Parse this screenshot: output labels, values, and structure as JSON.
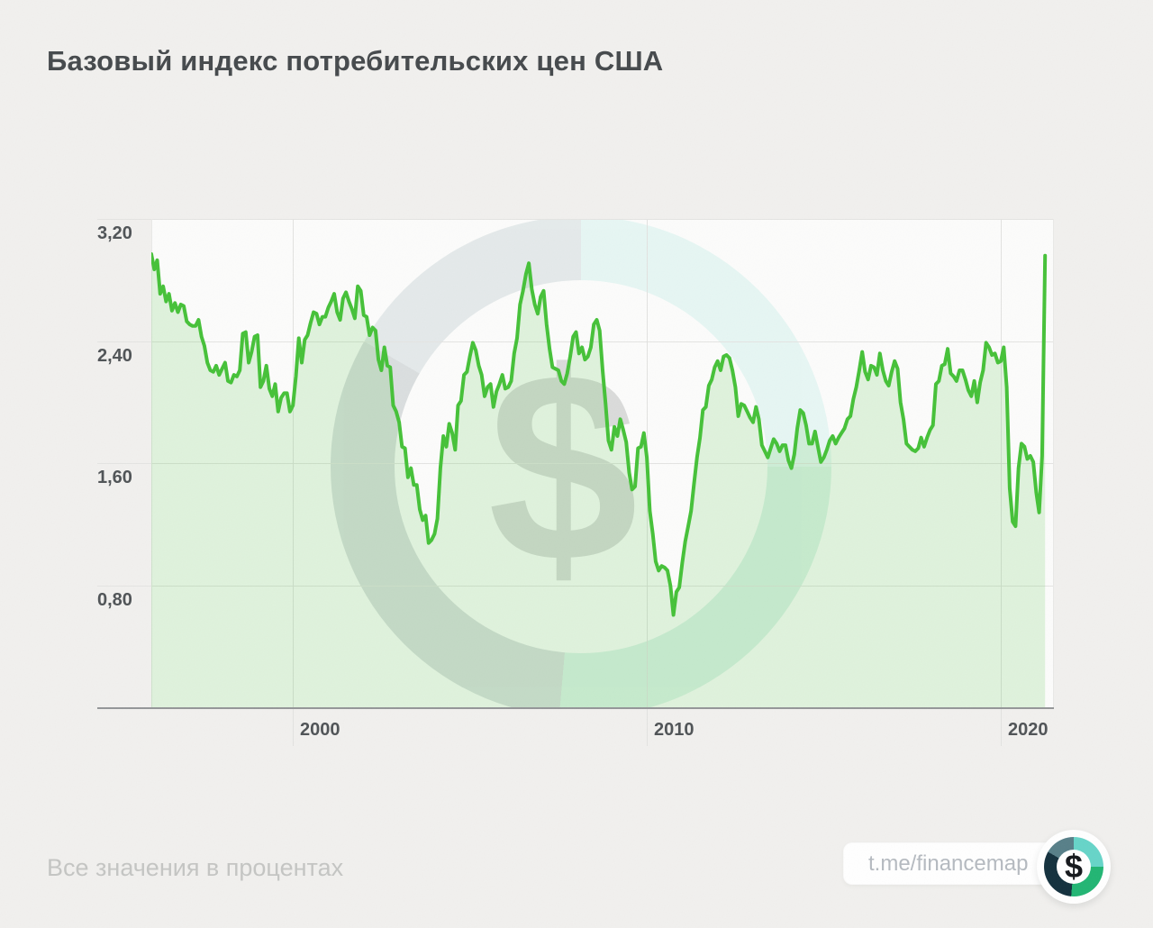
{
  "page": {
    "title": "Базовый индекс потребительских цен США",
    "footnote": "Все значения в процентах",
    "badge_text": "t.me/financemap"
  },
  "brand": {
    "symbol": "$",
    "ring_colors": [
      "#66d4c8",
      "#21b573",
      "#13303d",
      "#577f88"
    ],
    "accent_green": "#45c138"
  },
  "chart_data": {
    "type": "line",
    "title": "Базовый индекс потребительских цен США",
    "units": "percent",
    "frequency": "monthly",
    "start_year": 1996,
    "end_month": "2021-04",
    "x_domain": [
      1996,
      2021.5
    ],
    "y_domain": [
      0,
      3.2
    ],
    "ylim": [
      0,
      3.2
    ],
    "grid": true,
    "legend_position": "none",
    "line_color": "#45c138",
    "fill_color": "rgba(76,191,60,0.16)",
    "y_ticks": [
      {
        "value": 3.2,
        "label": "3,20"
      },
      {
        "value": 2.4,
        "label": "2,40"
      },
      {
        "value": 1.6,
        "label": "1,60"
      },
      {
        "value": 0.8,
        "label": "0,80"
      }
    ],
    "x_ticks": [
      {
        "value": 2000,
        "label": "2000"
      },
      {
        "value": 2010,
        "label": "2010"
      },
      {
        "value": 2020,
        "label": "2020"
      }
    ],
    "values": [
      2.97,
      2.87,
      2.93,
      2.71,
      2.76,
      2.66,
      2.71,
      2.6,
      2.65,
      2.59,
      2.64,
      2.63,
      2.53,
      2.51,
      2.5,
      2.5,
      2.54,
      2.43,
      2.37,
      2.26,
      2.21,
      2.2,
      2.24,
      2.18,
      2.22,
      2.26,
      2.14,
      2.13,
      2.18,
      2.17,
      2.21,
      2.45,
      2.46,
      2.26,
      2.33,
      2.43,
      2.44,
      2.1,
      2.14,
      2.24,
      2.09,
      2.04,
      2.12,
      1.94,
      2.03,
      2.06,
      2.06,
      1.94,
      1.98,
      2.17,
      2.42,
      2.26,
      2.41,
      2.44,
      2.52,
      2.59,
      2.58,
      2.51,
      2.56,
      2.56,
      2.62,
      2.66,
      2.71,
      2.59,
      2.54,
      2.68,
      2.72,
      2.66,
      2.61,
      2.55,
      2.76,
      2.73,
      2.57,
      2.56,
      2.44,
      2.49,
      2.47,
      2.28,
      2.21,
      2.36,
      2.24,
      2.23,
      1.98,
      1.94,
      1.87,
      1.71,
      1.7,
      1.51,
      1.57,
      1.46,
      1.46,
      1.3,
      1.23,
      1.26,
      1.08,
      1.1,
      1.14,
      1.24,
      1.57,
      1.78,
      1.71,
      1.86,
      1.8,
      1.69,
      1.98,
      2.01,
      2.18,
      2.2,
      2.3,
      2.39,
      2.34,
      2.24,
      2.18,
      2.04,
      2.1,
      2.12,
      1.97,
      2.07,
      2.12,
      2.18,
      2.09,
      2.1,
      2.14,
      2.32,
      2.42,
      2.64,
      2.73,
      2.84,
      2.91,
      2.74,
      2.64,
      2.58,
      2.69,
      2.73,
      2.51,
      2.35,
      2.23,
      2.22,
      2.21,
      2.14,
      2.12,
      2.19,
      2.3,
      2.43,
      2.46,
      2.32,
      2.36,
      2.28,
      2.3,
      2.36,
      2.51,
      2.54,
      2.47,
      2.21,
      1.99,
      1.75,
      1.69,
      1.84,
      1.78,
      1.89,
      1.82,
      1.74,
      1.54,
      1.43,
      1.45,
      1.7,
      1.71,
      1.8,
      1.64,
      1.29,
      1.14,
      0.96,
      0.9,
      0.93,
      0.92,
      0.9,
      0.8,
      0.61,
      0.76,
      0.79,
      0.95,
      1.09,
      1.19,
      1.29,
      1.47,
      1.64,
      1.77,
      1.95,
      1.97,
      2.11,
      2.15,
      2.23,
      2.27,
      2.21,
      2.3,
      2.31,
      2.29,
      2.21,
      2.1,
      1.91,
      1.99,
      1.98,
      1.94,
      1.9,
      1.87,
      1.97,
      1.89,
      1.72,
      1.68,
      1.64,
      1.7,
      1.76,
      1.73,
      1.68,
      1.72,
      1.72,
      1.62,
      1.57,
      1.66,
      1.83,
      1.95,
      1.93,
      1.85,
      1.73,
      1.73,
      1.81,
      1.71,
      1.61,
      1.64,
      1.69,
      1.75,
      1.78,
      1.73,
      1.77,
      1.8,
      1.83,
      1.89,
      1.91,
      2.02,
      2.1,
      2.21,
      2.33,
      2.2,
      2.15,
      2.24,
      2.23,
      2.18,
      2.32,
      2.21,
      2.14,
      2.11,
      2.2,
      2.27,
      2.22,
      2.0,
      1.89,
      1.73,
      1.71,
      1.69,
      1.68,
      1.7,
      1.77,
      1.71,
      1.77,
      1.82,
      1.85,
      2.12,
      2.14,
      2.24,
      2.25,
      2.35,
      2.19,
      2.17,
      2.14,
      2.21,
      2.21,
      2.15,
      2.08,
      2.04,
      2.14,
      2.0,
      2.13,
      2.21,
      2.39,
      2.36,
      2.31,
      2.32,
      2.26,
      2.27,
      2.36,
      2.1,
      1.44,
      1.22,
      1.19,
      1.57,
      1.73,
      1.71,
      1.63,
      1.65,
      1.61,
      1.41,
      1.28,
      1.65,
      2.96
    ]
  }
}
